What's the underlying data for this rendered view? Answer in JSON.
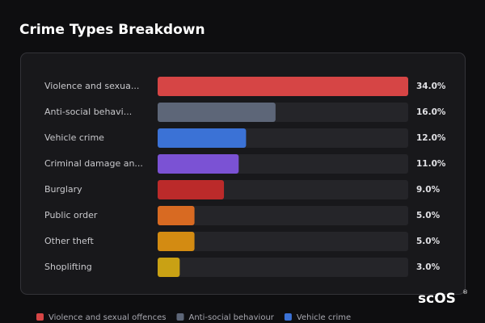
{
  "chart_data": {
    "type": "bar",
    "orientation": "horizontal",
    "title": "Crime Types Breakdown",
    "categories": [
      "Violence and sexua...",
      "Anti-social behavi...",
      "Vehicle crime",
      "Criminal damage an...",
      "Burglary",
      "Public order",
      "Other theft",
      "Shoplifting"
    ],
    "values": [
      34,
      16,
      12,
      11,
      9,
      5,
      5,
      3
    ],
    "value_labels": [
      "34.0%",
      "16.0%",
      "12.0%",
      "11.0%",
      "9.0%",
      "5.0%",
      "5.0%",
      "3.0%"
    ],
    "colors": [
      "#d64545",
      "#5d6678",
      "#3b72d6",
      "#7b52d4",
      "#bb2a2a",
      "#d86a22",
      "#d38b12",
      "#c9a114"
    ],
    "legend": [
      {
        "name": "Violence and sexual offences",
        "color": "#d64545"
      },
      {
        "name": "Anti-social behaviour",
        "color": "#5d6678"
      },
      {
        "name": "Vehicle crime",
        "color": "#3b72d6"
      }
    ]
  },
  "watermark": "scOS",
  "watermark_mark": "®"
}
